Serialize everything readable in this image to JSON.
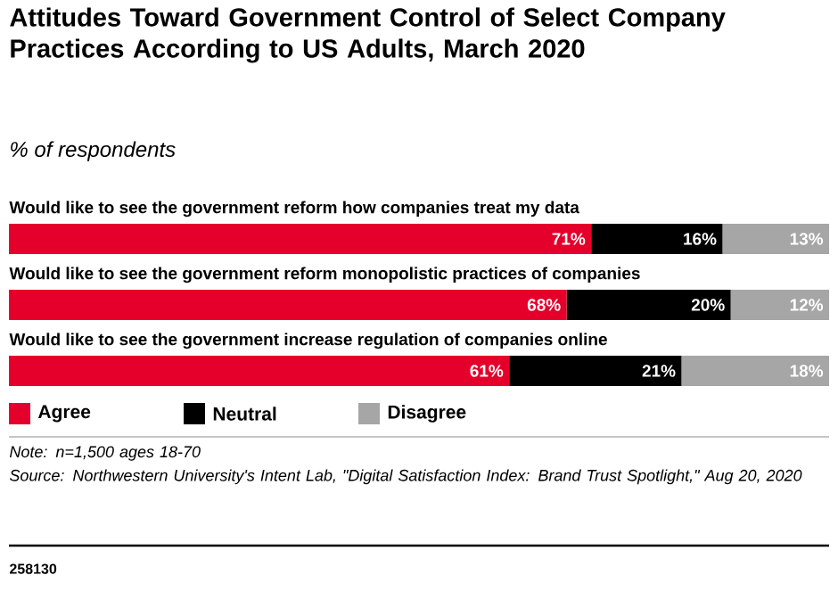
{
  "chart_data": {
    "type": "bar",
    "orientation": "horizontal",
    "stacked": true,
    "legend": "bottom left",
    "title": "Attitudes Toward Government Control of Select Company Practices According to US Adults, March 2020",
    "subtitle": "% of respondents",
    "categories": [
      "Would like to see the government reform how companies treat my data",
      "Would like to see the government reform monopolistic practices of companies",
      "Would like to see the government increase regulation of companies online"
    ],
    "series": [
      {
        "name": "Agree",
        "color": "#e4002b",
        "values": [
          71,
          68,
          61
        ],
        "value_labels": [
          "71%",
          "68%",
          "61%"
        ]
      },
      {
        "name": "Neutral",
        "color": "#000000",
        "values": [
          16,
          20,
          21
        ],
        "value_labels": [
          "16%",
          "20%",
          "21%"
        ]
      },
      {
        "name": "Disagree",
        "color": "#a6a6a6",
        "values": [
          13,
          12,
          18
        ],
        "value_labels": [
          "13%",
          "12%",
          "18%"
        ]
      }
    ],
    "annotations": [
      "Note: n=1,500 ages 18-70",
      "Source: Northwestern University's Intent Lab, \"Digital Satisfaction Index: Brand Trust Spotlight,\" Aug 20, 2020",
      "258130"
    ]
  }
}
